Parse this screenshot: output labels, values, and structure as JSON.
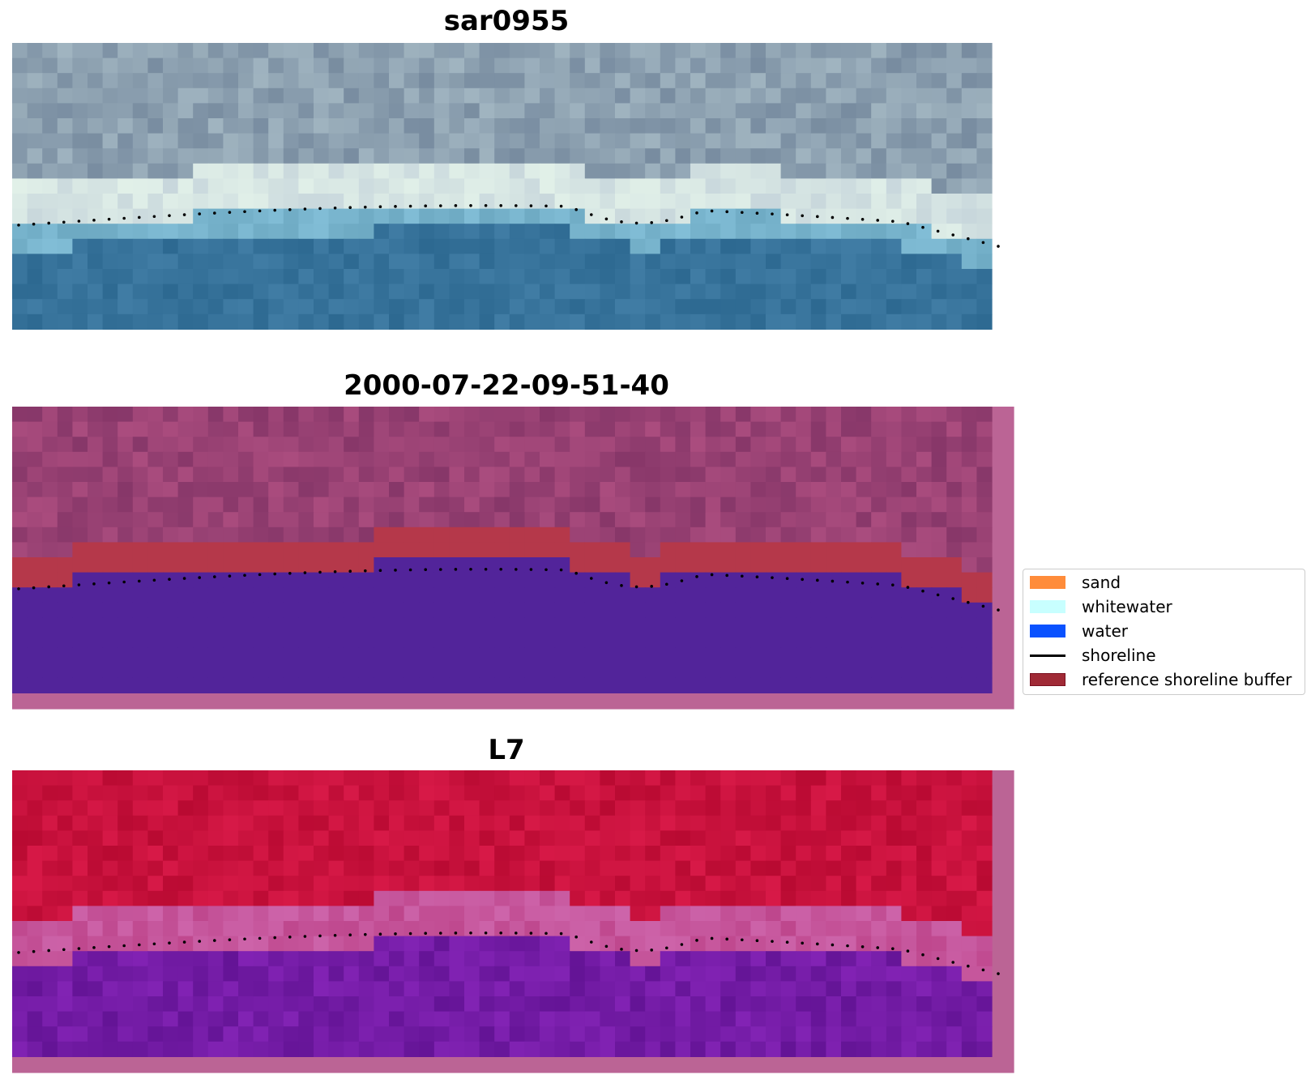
{
  "panels": [
    {
      "title": "sar0955"
    },
    {
      "title": "2000-07-22-09-51-40"
    },
    {
      "title": "L7"
    }
  ],
  "legend": {
    "items": [
      {
        "label": "sand",
        "color": "#ff8c3a",
        "kind": "patch"
      },
      {
        "label": "whitewater",
        "color": "#c8ffff",
        "kind": "patch"
      },
      {
        "label": "water",
        "color": "#0a52ff",
        "kind": "patch"
      },
      {
        "label": "shoreline",
        "color": "#000000",
        "kind": "line"
      },
      {
        "label": "reference shoreline buffer",
        "color": "#a02a36",
        "kind": "patch"
      }
    ]
  }
}
